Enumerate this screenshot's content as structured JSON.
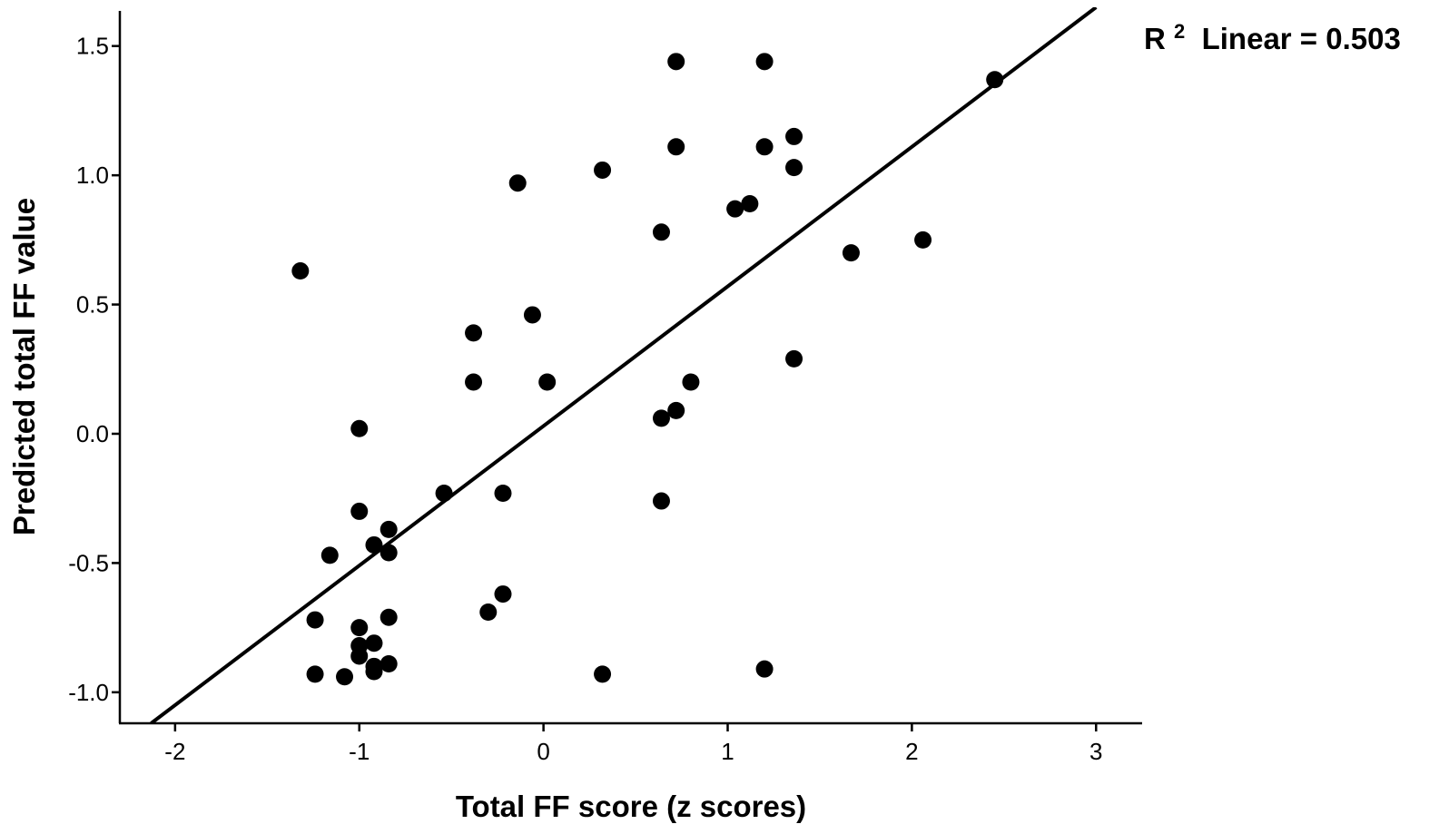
{
  "chart_data": {
    "type": "scatter",
    "title": "",
    "xlabel": "Total FF score (z scores)",
    "ylabel": "Predicted total FF value",
    "xlim": [
      -2.3,
      3.25
    ],
    "ylim": [
      -1.12,
      1.65
    ],
    "xticks": [
      -2,
      -1,
      0,
      1,
      2,
      3
    ],
    "xtick_labels": [
      "-2",
      "-1",
      "0",
      "1",
      "2",
      "3"
    ],
    "yticks": [
      -1.0,
      -0.5,
      0.0,
      0.5,
      1.0,
      1.5
    ],
    "ytick_labels": [
      "-1.0",
      "-0.5",
      "0.0",
      "0.5",
      "1.0",
      "1.5"
    ],
    "grid": false,
    "legend": "none",
    "marker_color": "#000000",
    "fit_line": {
      "type": "linear",
      "color": "#000000",
      "r2_label": "R",
      "r2_superscript": "2",
      "r2_text": " Linear = 0.503",
      "endpoints": [
        [
          -2.13,
          -1.12
        ],
        [
          3.0,
          1.65
        ]
      ]
    },
    "series": [
      {
        "points": [
          [
            0.72,
            1.44
          ],
          [
            1.2,
            1.44
          ],
          [
            2.45,
            1.37
          ],
          [
            0.72,
            1.11
          ],
          [
            1.2,
            1.11
          ],
          [
            1.36,
            1.15
          ],
          [
            0.32,
            1.02
          ],
          [
            1.36,
            1.03
          ],
          [
            -0.14,
            0.97
          ],
          [
            1.04,
            0.87
          ],
          [
            1.12,
            0.89
          ],
          [
            0.64,
            0.78
          ],
          [
            2.06,
            0.75
          ],
          [
            1.67,
            0.7
          ],
          [
            -1.32,
            0.63
          ],
          [
            -0.06,
            0.46
          ],
          [
            -0.38,
            0.39
          ],
          [
            1.36,
            0.29
          ],
          [
            -0.38,
            0.2
          ],
          [
            0.02,
            0.2
          ],
          [
            0.8,
            0.2
          ],
          [
            0.72,
            0.09
          ],
          [
            0.64,
            0.06
          ],
          [
            -1.0,
            0.02
          ],
          [
            -0.54,
            -0.23
          ],
          [
            -0.22,
            -0.23
          ],
          [
            0.64,
            -0.26
          ],
          [
            -1.0,
            -0.3
          ],
          [
            -0.84,
            -0.37
          ],
          [
            -0.92,
            -0.43
          ],
          [
            -1.16,
            -0.47
          ],
          [
            -0.84,
            -0.46
          ],
          [
            -0.22,
            -0.62
          ],
          [
            -0.3,
            -0.69
          ],
          [
            -0.84,
            -0.71
          ],
          [
            -1.24,
            -0.72
          ],
          [
            -1.0,
            -0.75
          ],
          [
            -1.0,
            -0.82
          ],
          [
            -0.92,
            -0.81
          ],
          [
            -1.0,
            -0.86
          ],
          [
            -0.84,
            -0.89
          ],
          [
            -0.92,
            -0.9
          ],
          [
            -0.92,
            -0.92
          ],
          [
            -1.24,
            -0.93
          ],
          [
            -1.08,
            -0.94
          ],
          [
            0.32,
            -0.93
          ],
          [
            1.2,
            -0.91
          ]
        ]
      }
    ]
  }
}
